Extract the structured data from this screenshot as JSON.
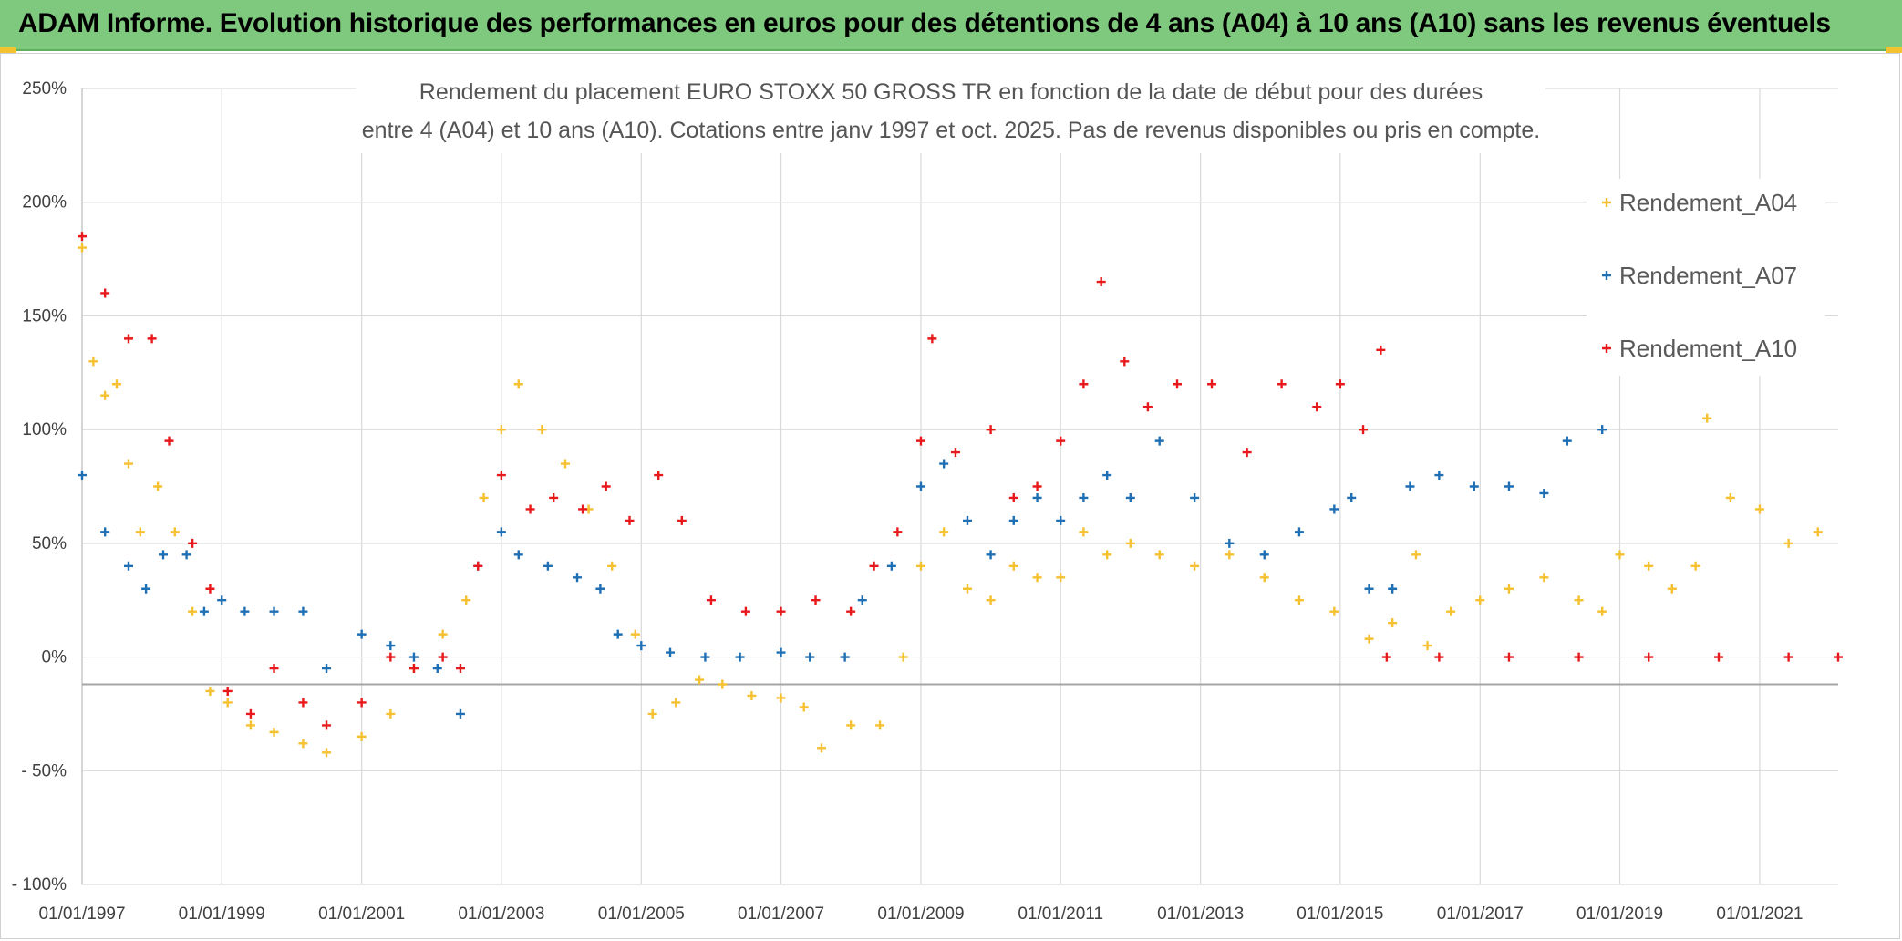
{
  "header": {
    "title": "ADAM Informe. Evolution historique des performances en euros pour des détentions de 4 ans (A04) à 10 ans (A10) sans les revenus éventuels"
  },
  "chart_data": {
    "type": "scatter",
    "title_line1": "Rendement du placement EURO STOXX 50 GROSS TR en fonction de la date de début pour des durées",
    "title_line2": "entre 4 (A04) et 10 ans (A10). Cotations entre janv 1997 et oct. 2025. Pas de revenus disponibles ou pris en compte.",
    "x_axis": {
      "type": "date",
      "range": [
        "1997-01-01",
        "2022-02-15"
      ],
      "tick_labels": [
        "01/01/1997",
        "01/01/1999",
        "01/01/2001",
        "01/01/2003",
        "01/01/2005",
        "01/01/2007",
        "01/01/2009",
        "01/01/2011",
        "01/01/2013",
        "01/01/2015",
        "01/01/2017",
        "01/01/2019",
        "01/01/2021"
      ],
      "tick_dates": [
        "1997-01-01",
        "1999-01-01",
        "2001-01-01",
        "2003-01-01",
        "2005-01-01",
        "2007-01-01",
        "2009-01-01",
        "2011-01-01",
        "2013-01-01",
        "2015-01-01",
        "2017-01-01",
        "2019-01-01",
        "2021-01-01"
      ]
    },
    "y_axis": {
      "unit": "%",
      "range": [
        -100,
        250
      ],
      "tick_values": [
        250,
        200,
        150,
        100,
        50,
        0,
        -50,
        -100
      ],
      "tick_labels": [
        "250%",
        "200%",
        "150%",
        "100%",
        "50%",
        "0%",
        "- 50%",
        "- 100%"
      ]
    },
    "reference_line_y": -12,
    "grid": true,
    "legend_position": "right",
    "marker": "+",
    "series": [
      {
        "name": "Rendement_A04",
        "color": "#f5c130",
        "points": [
          [
            "1997-01-01",
            180
          ],
          [
            "1997-03-01",
            130
          ],
          [
            "1997-05-01",
            115
          ],
          [
            "1997-07-01",
            120
          ],
          [
            "1997-09-01",
            85
          ],
          [
            "1997-11-01",
            55
          ],
          [
            "1998-02-01",
            75
          ],
          [
            "1998-05-01",
            55
          ],
          [
            "1998-08-01",
            20
          ],
          [
            "1998-11-01",
            -15
          ],
          [
            "1999-02-01",
            -20
          ],
          [
            "1999-06-01",
            -30
          ],
          [
            "1999-10-01",
            -33
          ],
          [
            "2000-03-01",
            -38
          ],
          [
            "2000-07-01",
            -42
          ],
          [
            "2001-01-01",
            -35
          ],
          [
            "2001-06-01",
            -25
          ],
          [
            "2001-10-01",
            -5
          ],
          [
            "2002-03-01",
            10
          ],
          [
            "2002-07-01",
            25
          ],
          [
            "2002-10-01",
            70
          ],
          [
            "2003-01-01",
            100
          ],
          [
            "2003-04-01",
            120
          ],
          [
            "2003-08-01",
            100
          ],
          [
            "2003-12-01",
            85
          ],
          [
            "2004-04-01",
            65
          ],
          [
            "2004-08-01",
            40
          ],
          [
            "2004-12-01",
            10
          ],
          [
            "2005-03-01",
            -25
          ],
          [
            "2005-07-01",
            -20
          ],
          [
            "2005-11-01",
            -10
          ],
          [
            "2006-03-01",
            -12
          ],
          [
            "2006-08-01",
            -17
          ],
          [
            "2007-01-01",
            -18
          ],
          [
            "2007-05-01",
            -22
          ],
          [
            "2007-08-01",
            -40
          ],
          [
            "2008-01-01",
            -30
          ],
          [
            "2008-06-01",
            -30
          ],
          [
            "2008-10-01",
            0
          ],
          [
            "2009-01-01",
            40
          ],
          [
            "2009-05-01",
            55
          ],
          [
            "2009-09-01",
            30
          ],
          [
            "2010-01-01",
            25
          ],
          [
            "2010-05-01",
            40
          ],
          [
            "2010-09-01",
            35
          ],
          [
            "2011-01-01",
            35
          ],
          [
            "2011-05-01",
            55
          ],
          [
            "2011-09-01",
            45
          ],
          [
            "2012-01-01",
            50
          ],
          [
            "2012-06-01",
            45
          ],
          [
            "2012-12-01",
            40
          ],
          [
            "2013-06-01",
            45
          ],
          [
            "2013-12-01",
            35
          ],
          [
            "2014-06-01",
            25
          ],
          [
            "2014-12-01",
            20
          ],
          [
            "2015-06-01",
            8
          ],
          [
            "2015-10-01",
            15
          ],
          [
            "2016-02-01",
            45
          ],
          [
            "2016-04-01",
            5
          ],
          [
            "2016-08-01",
            20
          ],
          [
            "2017-01-01",
            25
          ],
          [
            "2017-06-01",
            30
          ],
          [
            "2017-12-01",
            35
          ],
          [
            "2018-06-01",
            25
          ],
          [
            "2018-10-01",
            20
          ],
          [
            "2019-01-01",
            45
          ],
          [
            "2019-06-01",
            40
          ],
          [
            "2019-10-01",
            30
          ],
          [
            "2020-02-01",
            40
          ],
          [
            "2020-04-01",
            105
          ],
          [
            "2020-08-01",
            70
          ],
          [
            "2021-01-01",
            65
          ],
          [
            "2021-06-01",
            50
          ],
          [
            "2021-11-01",
            55
          ]
        ]
      },
      {
        "name": "Rendement_A07",
        "color": "#1f6fb5",
        "points": [
          [
            "1997-01-01",
            80
          ],
          [
            "1997-05-01",
            55
          ],
          [
            "1997-09-01",
            40
          ],
          [
            "1997-12-01",
            30
          ],
          [
            "1998-03-01",
            45
          ],
          [
            "1998-07-01",
            45
          ],
          [
            "1998-10-01",
            20
          ],
          [
            "1999-01-01",
            25
          ],
          [
            "1999-05-01",
            20
          ],
          [
            "1999-10-01",
            20
          ],
          [
            "2000-03-01",
            20
          ],
          [
            "2000-07-01",
            -5
          ],
          [
            "2001-01-01",
            10
          ],
          [
            "2001-06-01",
            5
          ],
          [
            "2001-10-01",
            0
          ],
          [
            "2002-02-01",
            -5
          ],
          [
            "2002-06-01",
            -25
          ],
          [
            "2002-09-01",
            40
          ],
          [
            "2003-01-01",
            55
          ],
          [
            "2003-04-01",
            45
          ],
          [
            "2003-09-01",
            40
          ],
          [
            "2004-02-01",
            35
          ],
          [
            "2004-06-01",
            30
          ],
          [
            "2004-09-01",
            10
          ],
          [
            "2005-01-01",
            5
          ],
          [
            "2005-06-01",
            2
          ],
          [
            "2005-12-01",
            0
          ],
          [
            "2006-06-01",
            0
          ],
          [
            "2007-01-01",
            2
          ],
          [
            "2007-06-01",
            0
          ],
          [
            "2007-12-01",
            0
          ],
          [
            "2008-03-01",
            25
          ],
          [
            "2008-08-01",
            40
          ],
          [
            "2009-01-01",
            75
          ],
          [
            "2009-05-01",
            85
          ],
          [
            "2009-09-01",
            60
          ],
          [
            "2010-01-01",
            45
          ],
          [
            "2010-05-01",
            60
          ],
          [
            "2010-09-01",
            70
          ],
          [
            "2011-01-01",
            60
          ],
          [
            "2011-05-01",
            70
          ],
          [
            "2011-09-01",
            80
          ],
          [
            "2012-01-01",
            70
          ],
          [
            "2012-06-01",
            95
          ],
          [
            "2012-12-01",
            70
          ],
          [
            "2013-06-01",
            50
          ],
          [
            "2013-12-01",
            45
          ],
          [
            "2014-06-01",
            55
          ],
          [
            "2014-12-01",
            65
          ],
          [
            "2015-03-01",
            70
          ],
          [
            "2015-06-01",
            30
          ],
          [
            "2015-10-01",
            30
          ],
          [
            "2016-01-01",
            75
          ],
          [
            "2016-06-01",
            80
          ],
          [
            "2016-12-01",
            75
          ],
          [
            "2017-06-01",
            75
          ],
          [
            "2017-12-01",
            72
          ],
          [
            "2018-04-01",
            95
          ],
          [
            "2018-10-01",
            100
          ]
        ]
      },
      {
        "name": "Rendement_A10",
        "color": "#e8191c",
        "points": [
          [
            "1997-01-01",
            185
          ],
          [
            "1997-05-01",
            160
          ],
          [
            "1997-09-01",
            140
          ],
          [
            "1998-01-01",
            140
          ],
          [
            "1998-04-01",
            95
          ],
          [
            "1998-08-01",
            50
          ],
          [
            "1998-11-01",
            30
          ],
          [
            "1999-02-01",
            -15
          ],
          [
            "1999-06-01",
            -25
          ],
          [
            "1999-10-01",
            -5
          ],
          [
            "2000-03-01",
            -20
          ],
          [
            "2000-07-01",
            -30
          ],
          [
            "2001-01-01",
            -20
          ],
          [
            "2001-06-01",
            0
          ],
          [
            "2001-10-01",
            -5
          ],
          [
            "2002-03-01",
            0
          ],
          [
            "2002-06-01",
            -5
          ],
          [
            "2002-09-01",
            40
          ],
          [
            "2003-01-01",
            80
          ],
          [
            "2003-06-01",
            65
          ],
          [
            "2003-10-01",
            70
          ],
          [
            "2004-03-01",
            65
          ],
          [
            "2004-07-01",
            75
          ],
          [
            "2004-11-01",
            60
          ],
          [
            "2005-04-01",
            80
          ],
          [
            "2005-08-01",
            60
          ],
          [
            "2006-01-01",
            25
          ],
          [
            "2006-07-01",
            20
          ],
          [
            "2007-01-01",
            20
          ],
          [
            "2007-07-01",
            25
          ],
          [
            "2008-01-01",
            20
          ],
          [
            "2008-05-01",
            40
          ],
          [
            "2008-09-01",
            55
          ],
          [
            "2009-01-01",
            95
          ],
          [
            "2009-03-01",
            140
          ],
          [
            "2009-07-01",
            90
          ],
          [
            "2010-01-01",
            100
          ],
          [
            "2010-05-01",
            70
          ],
          [
            "2010-09-01",
            75
          ],
          [
            "2011-01-01",
            95
          ],
          [
            "2011-05-01",
            120
          ],
          [
            "2011-08-01",
            165
          ],
          [
            "2011-12-01",
            130
          ],
          [
            "2012-04-01",
            110
          ],
          [
            "2012-09-01",
            120
          ],
          [
            "2013-03-01",
            120
          ],
          [
            "2013-09-01",
            90
          ],
          [
            "2014-03-01",
            120
          ],
          [
            "2014-09-01",
            110
          ],
          [
            "2015-01-01",
            120
          ],
          [
            "2015-05-01",
            100
          ],
          [
            "2015-08-01",
            135
          ],
          [
            "2015-09-01",
            0
          ],
          [
            "2016-06-01",
            0
          ],
          [
            "2017-06-01",
            0
          ],
          [
            "2018-06-01",
            0
          ],
          [
            "2019-06-01",
            0
          ],
          [
            "2020-06-01",
            0
          ],
          [
            "2021-06-01",
            0
          ],
          [
            "2022-02-15",
            0
          ]
        ]
      }
    ]
  }
}
